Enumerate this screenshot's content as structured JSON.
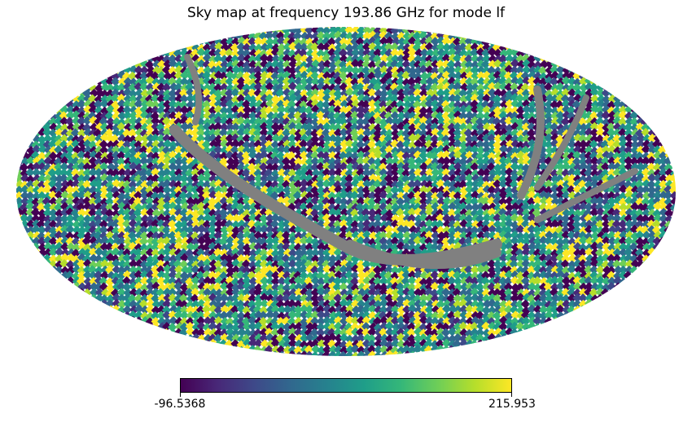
{
  "chart_data": {
    "type": "heatmap",
    "projection": "mollweide",
    "title": "Sky map at frequency 193.86 GHz for mode lf",
    "colormap": "viridis",
    "masked_color": "#808080",
    "colorbar": {
      "min_label": "-96.5368",
      "max_label": "215.953",
      "vmin": -96.5368,
      "vmax": 215.953,
      "orientation": "horizontal"
    }
  }
}
